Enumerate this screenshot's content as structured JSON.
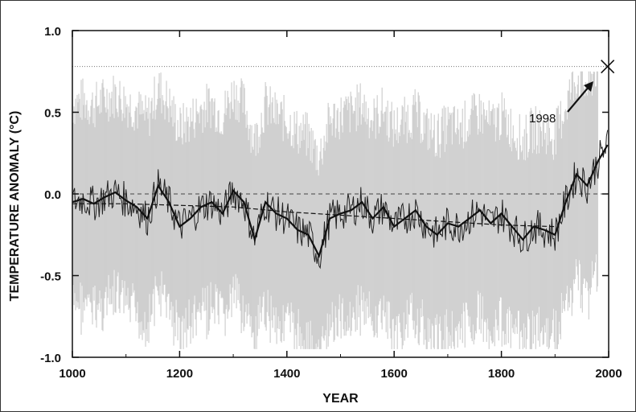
{
  "chart_data": {
    "type": "line",
    "title": "",
    "xlabel": "YEAR",
    "ylabel": "TEMPERATURE ANOMALY (°C)",
    "xlim": [
      1000,
      2000
    ],
    "ylim": [
      -1.0,
      1.0
    ],
    "x_ticks": [
      "1000",
      "1200",
      "1400",
      "1600",
      "1800",
      "2000"
    ],
    "y_ticks": [
      "1.0",
      "0.5",
      "0.0",
      "-0.5",
      "-1.0"
    ],
    "grid": false,
    "reference_levels": [
      0.0,
      0.78
    ],
    "annotations": [
      {
        "text": "1998",
        "x": 1998,
        "y": 0.78
      }
    ],
    "series": [
      {
        "x": [
          1000,
          1020,
          1040,
          1060,
          1080,
          1100,
          1120,
          1140,
          1160,
          1180,
          1200,
          1220,
          1240,
          1260,
          1280,
          1300,
          1320,
          1340,
          1360,
          1380,
          1400,
          1420,
          1440,
          1460,
          1480,
          1500,
          1520,
          1540,
          1560,
          1580,
          1600,
          1620,
          1640,
          1660,
          1680,
          1700,
          1720,
          1740,
          1760,
          1780,
          1800,
          1820,
          1840,
          1860,
          1880,
          1900,
          1920,
          1940,
          1960,
          1980,
          1998
        ],
        "values": [
          -0.05,
          -0.03,
          -0.06,
          -0.02,
          0.01,
          -0.04,
          -0.08,
          -0.15,
          0.05,
          -0.05,
          -0.2,
          -0.15,
          -0.08,
          -0.05,
          -0.12,
          0.02,
          -0.05,
          -0.28,
          -0.05,
          -0.12,
          -0.15,
          -0.22,
          -0.25,
          -0.38,
          -0.15,
          -0.12,
          -0.1,
          -0.05,
          -0.15,
          -0.08,
          -0.2,
          -0.15,
          -0.1,
          -0.2,
          -0.25,
          -0.18,
          -0.2,
          -0.15,
          -0.1,
          -0.18,
          -0.12,
          -0.2,
          -0.28,
          -0.2,
          -0.22,
          -0.25,
          -0.05,
          0.12,
          0.05,
          0.2,
          0.3
        ]
      },
      {
        "x": [
          1000,
          1100,
          1200,
          1300,
          1400,
          1500,
          1600,
          1700,
          1800,
          1900
        ],
        "values": [
          -0.06,
          -0.06,
          -0.07,
          -0.08,
          -0.11,
          -0.13,
          -0.15,
          -0.17,
          -0.19,
          -0.2
        ]
      }
    ]
  }
}
